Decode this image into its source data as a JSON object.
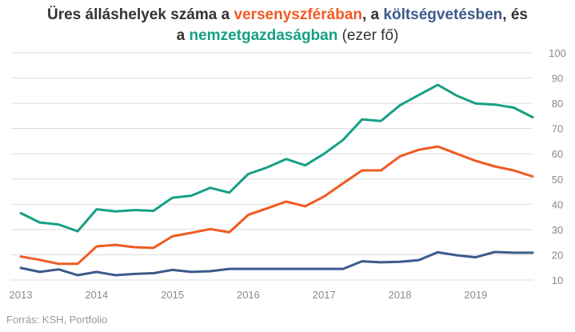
{
  "title": {
    "line1_prefix": "Üres álláshelyek száma a ",
    "seg_private": "versenyszférában",
    "line1_mid": ", a ",
    "seg_budget": "költségvetésben",
    "line1_suffix": ", és",
    "line2_prefix": "a ",
    "seg_national": "nemzetgazdaságban",
    "line2_suffix": " (ezer fő)"
  },
  "source": "Forrás: KSH, Portfolio",
  "colors": {
    "private": "#f15a22",
    "budget": "#3c5a8c",
    "national": "#16a085",
    "grid": "#dcdcdc",
    "text": "#333333"
  },
  "chart_data": {
    "type": "line",
    "x_ticks": [
      "2013",
      "2014",
      "2015",
      "2016",
      "2017",
      "2018",
      "2019"
    ],
    "x_start": 2013.0,
    "x_end": 2019.75,
    "x_step": 0.25,
    "ylim": [
      10,
      100
    ],
    "y_ticks": [
      10,
      20,
      30,
      40,
      50,
      60,
      70,
      80,
      90,
      100
    ],
    "y_axis_side": "right",
    "grid": true,
    "series": [
      {
        "key": "national",
        "values": [
          36.5,
          32.8,
          32.0,
          29.3,
          38.0,
          37.2,
          37.7,
          37.4,
          42.6,
          43.4,
          46.5,
          44.6,
          52.0,
          54.6,
          57.9,
          55.4,
          60.0,
          65.5,
          73.6,
          73.0,
          79.2,
          83.3,
          87.3,
          83.0,
          79.9,
          79.5,
          78.3,
          74.5
        ]
      },
      {
        "key": "private",
        "values": [
          19.3,
          18.0,
          16.4,
          16.4,
          23.3,
          23.9,
          23.0,
          22.7,
          27.3,
          28.7,
          30.2,
          28.9,
          35.8,
          38.4,
          41.1,
          39.2,
          43.1,
          48.3,
          53.4,
          53.4,
          59.0,
          61.6,
          62.9,
          60.0,
          57.2,
          55.0,
          53.4,
          51.0
        ]
      },
      {
        "key": "budget",
        "values": [
          14.8,
          13.2,
          14.2,
          11.9,
          13.2,
          11.9,
          12.4,
          12.7,
          14.0,
          13.2,
          13.5,
          14.4,
          14.4,
          14.4,
          14.4,
          14.4,
          14.4,
          14.4,
          17.4,
          17.0,
          17.2,
          17.9,
          21.0,
          19.8,
          19.0,
          21.1,
          20.8,
          20.8
        ]
      }
    ]
  }
}
